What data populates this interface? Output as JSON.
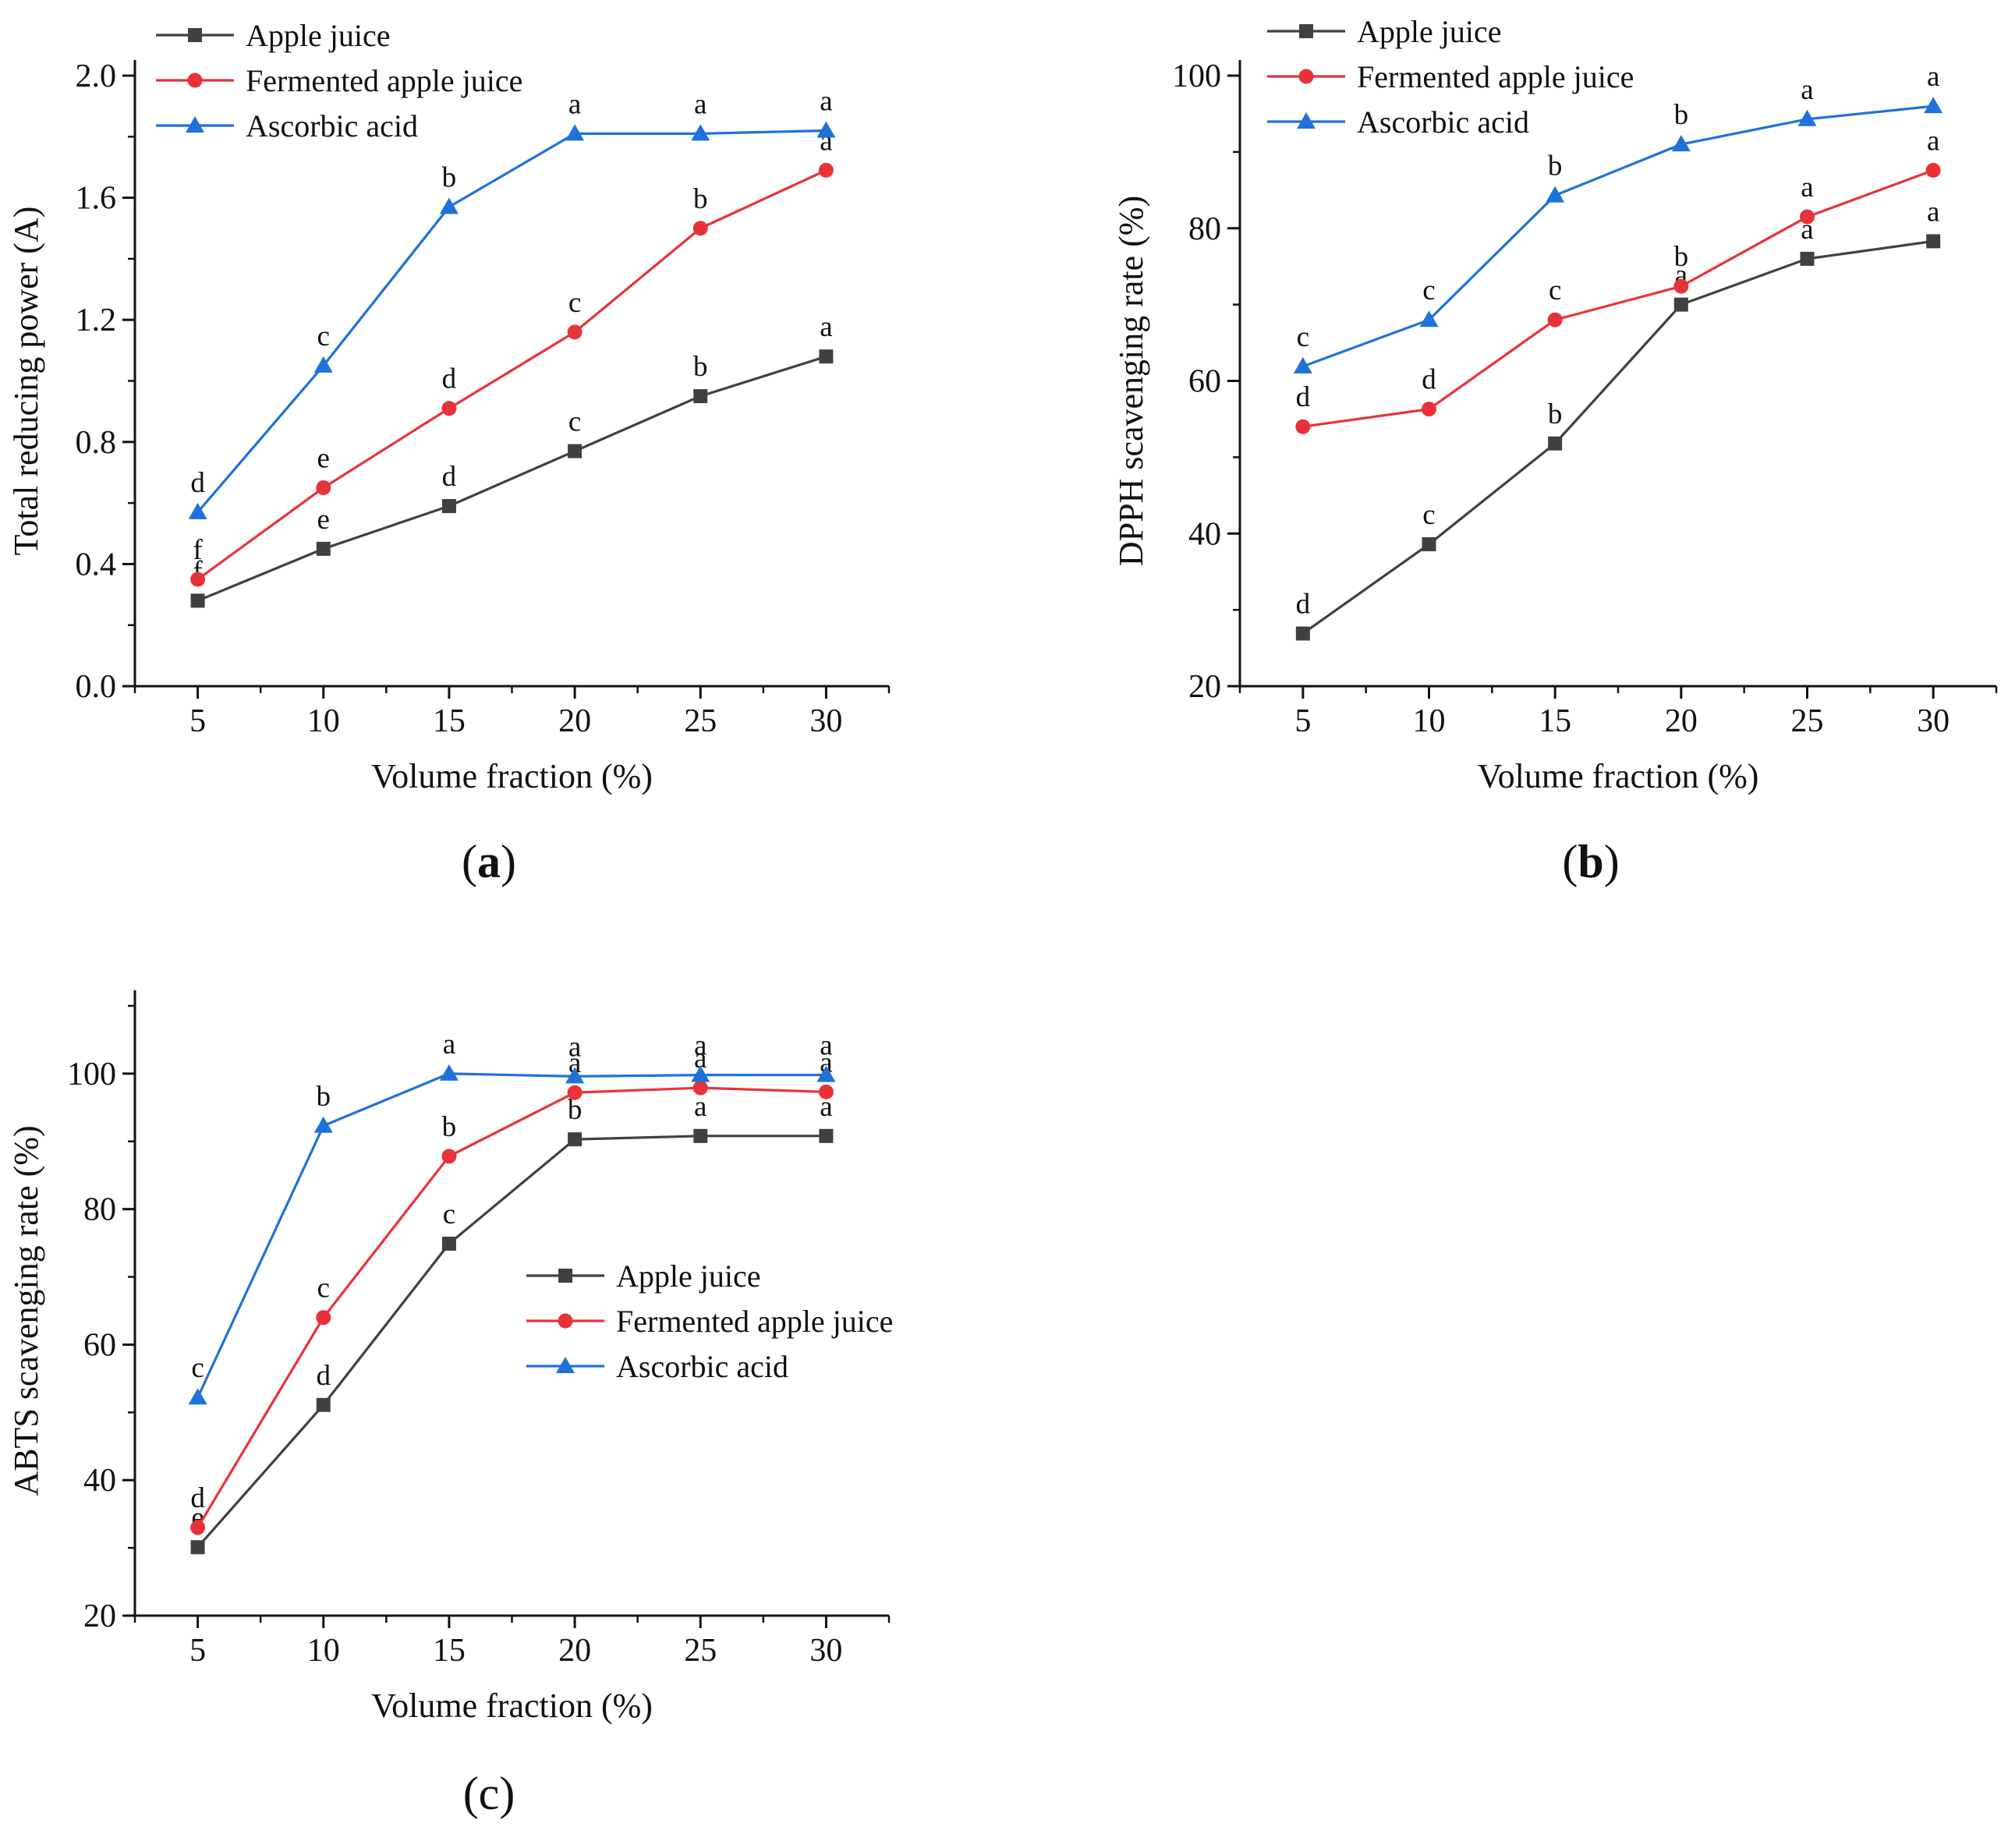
{
  "chart_data": [
    {
      "panel": "(a)",
      "type": "line",
      "x": [
        5,
        10,
        15,
        20,
        25,
        30
      ],
      "xlabel": "Volume fraction (%)",
      "ylabel": "Total reducing power (A)",
      "xlim": [
        2.5,
        32.5
      ],
      "ylim": [
        0.0,
        2.0
      ],
      "yticks": [
        "0.0",
        "0.4",
        "0.8",
        "1.2",
        "1.6",
        "2.0"
      ],
      "xticks": [
        "5",
        "10",
        "15",
        "20",
        "25",
        "30"
      ],
      "legend_position": "top-left",
      "series": [
        {
          "name": "Apple juice",
          "color": "#404040",
          "marker": "square",
          "values": [
            0.28,
            0.45,
            0.59,
            0.77,
            0.95,
            1.08
          ],
          "letters": [
            "f",
            "e",
            "d",
            "c",
            "b",
            "a"
          ]
        },
        {
          "name": "Fermented apple juice",
          "color": "#e8323a",
          "marker": "circle",
          "values": [
            0.35,
            0.65,
            0.91,
            1.16,
            1.5,
            1.69
          ],
          "letters": [
            "f",
            "e",
            "d",
            "c",
            "b",
            "a"
          ]
        },
        {
          "name": "Ascorbic acid",
          "color": "#1f72d8",
          "marker": "triangle",
          "values": [
            0.57,
            1.05,
            1.57,
            1.81,
            1.81,
            1.82
          ],
          "letters": [
            "d",
            "c",
            "b",
            "a",
            "a",
            "a"
          ]
        }
      ]
    },
    {
      "panel": "(b)",
      "type": "line",
      "x": [
        5,
        10,
        15,
        20,
        25,
        30
      ],
      "xlabel": "Volume fraction (%)",
      "ylabel": "DPPH scavenging rate (%)",
      "xlim": [
        2.5,
        32.5
      ],
      "ylim": [
        20,
        100
      ],
      "yticks": [
        "20",
        "40",
        "60",
        "80",
        "100"
      ],
      "xticks": [
        "5",
        "10",
        "15",
        "20",
        "25",
        "30"
      ],
      "legend_position": "top-left",
      "series": [
        {
          "name": "Apple juice",
          "color": "#404040",
          "marker": "square",
          "values": [
            26.9,
            38.6,
            51.8,
            70.0,
            76.0,
            78.3
          ],
          "letters": [
            "d",
            "c",
            "b",
            "a",
            "a",
            "a"
          ]
        },
        {
          "name": "Fermented apple juice",
          "color": "#e8323a",
          "marker": "circle",
          "values": [
            54.0,
            56.3,
            68.0,
            72.4,
            81.5,
            87.6
          ],
          "letters": [
            "d",
            "d",
            "c",
            "b",
            "a",
            "a"
          ]
        },
        {
          "name": "Ascorbic acid",
          "color": "#1f72d8",
          "marker": "triangle",
          "values": [
            61.9,
            68.0,
            84.3,
            91.0,
            94.3,
            96.0
          ],
          "letters": [
            "c",
            "c",
            "b",
            "b",
            "a",
            "a"
          ]
        }
      ]
    },
    {
      "panel": "(c)",
      "type": "line",
      "x": [
        5,
        10,
        15,
        20,
        25,
        30
      ],
      "xlabel": "Volume fraction (%)",
      "ylabel": "ABTS scavenging rate (%)",
      "xlim": [
        2.5,
        32.5
      ],
      "ylim": [
        20,
        110
      ],
      "yticks": [
        "20",
        "40",
        "60",
        "80",
        "100"
      ],
      "xticks": [
        "5",
        "10",
        "15",
        "20",
        "25",
        "30"
      ],
      "legend_position": "center-right",
      "series": [
        {
          "name": "Apple juice",
          "color": "#404040",
          "marker": "square",
          "values": [
            30.1,
            51.1,
            74.9,
            90.3,
            90.8,
            90.8
          ],
          "letters": [
            "e",
            "d",
            "c",
            "b",
            "a",
            "a"
          ]
        },
        {
          "name": "Fermented apple juice",
          "color": "#e8323a",
          "marker": "circle",
          "values": [
            33.0,
            64.0,
            87.8,
            97.2,
            97.9,
            97.3
          ],
          "letters": [
            "d",
            "c",
            "b",
            "a",
            "a",
            "a"
          ]
        },
        {
          "name": "Ascorbic acid",
          "color": "#1f72d8",
          "marker": "triangle",
          "values": [
            52.2,
            92.3,
            100.0,
            99.6,
            99.8,
            99.8
          ],
          "letters": [
            "c",
            "b",
            "a",
            "a",
            "a",
            "a"
          ]
        }
      ]
    }
  ]
}
